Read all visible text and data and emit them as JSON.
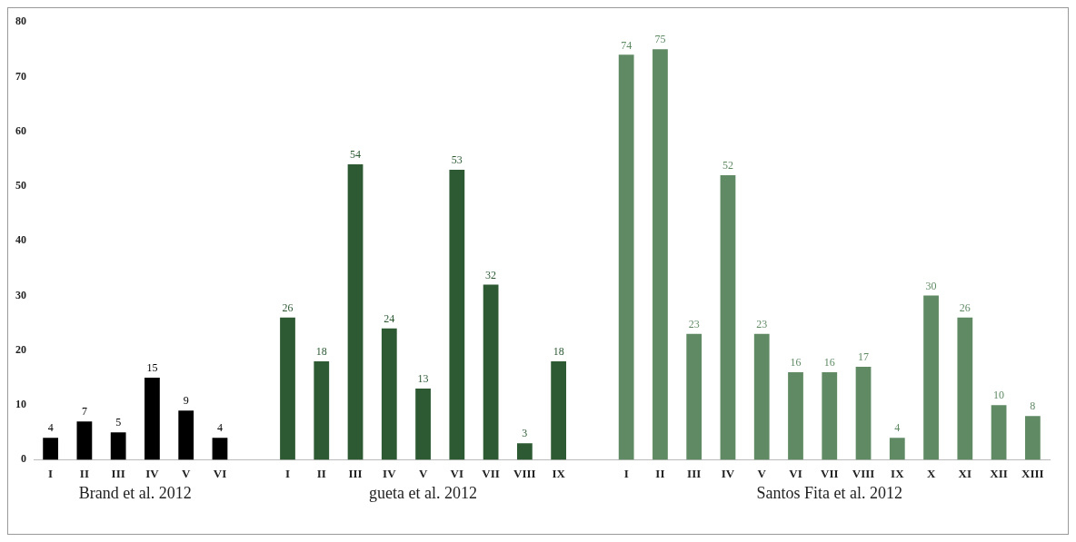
{
  "chart_data": {
    "type": "bar",
    "categories": [
      "I",
      "II",
      "III",
      "IV",
      "V",
      "VI",
      null,
      "I",
      "II",
      "III",
      "IV",
      "V",
      "VI",
      "VII",
      "VIII",
      "IX",
      null,
      "I",
      "II",
      "III",
      "IV",
      "V",
      "VI",
      "VII",
      "VIII",
      "IX",
      "X",
      "XI",
      "XII",
      "XIII"
    ],
    "series": [
      {
        "name": "Brand et al. 2012",
        "color": "#000000",
        "values": [
          4,
          7,
          5,
          15,
          9,
          4,
          null,
          null,
          null,
          null,
          null,
          null,
          null,
          null,
          null,
          null,
          null,
          null,
          null,
          null,
          null,
          null,
          null,
          null,
          null,
          null,
          null,
          null,
          null,
          null
        ]
      },
      {
        "name": "gueta et al. 2012",
        "color": "#2d5a33",
        "values": [
          null,
          null,
          null,
          null,
          null,
          null,
          null,
          26,
          18,
          54,
          24,
          13,
          53,
          32,
          3,
          18,
          null,
          null,
          null,
          null,
          null,
          null,
          null,
          null,
          null,
          null,
          null,
          null,
          null,
          null
        ]
      },
      {
        "name": "Santos Fita et al. 2012",
        "color": "#5f8a63",
        "values": [
          null,
          null,
          null,
          null,
          null,
          null,
          null,
          null,
          null,
          null,
          null,
          null,
          null,
          null,
          null,
          null,
          null,
          74,
          75,
          23,
          52,
          23,
          16,
          16,
          17,
          4,
          30,
          26,
          10,
          8
        ]
      }
    ],
    "ylim": [
      0,
      80
    ],
    "yticks": [
      0,
      10,
      20,
      30,
      40,
      50,
      60,
      70,
      80
    ],
    "grid": false,
    "legend": false,
    "data_labels": true
  }
}
